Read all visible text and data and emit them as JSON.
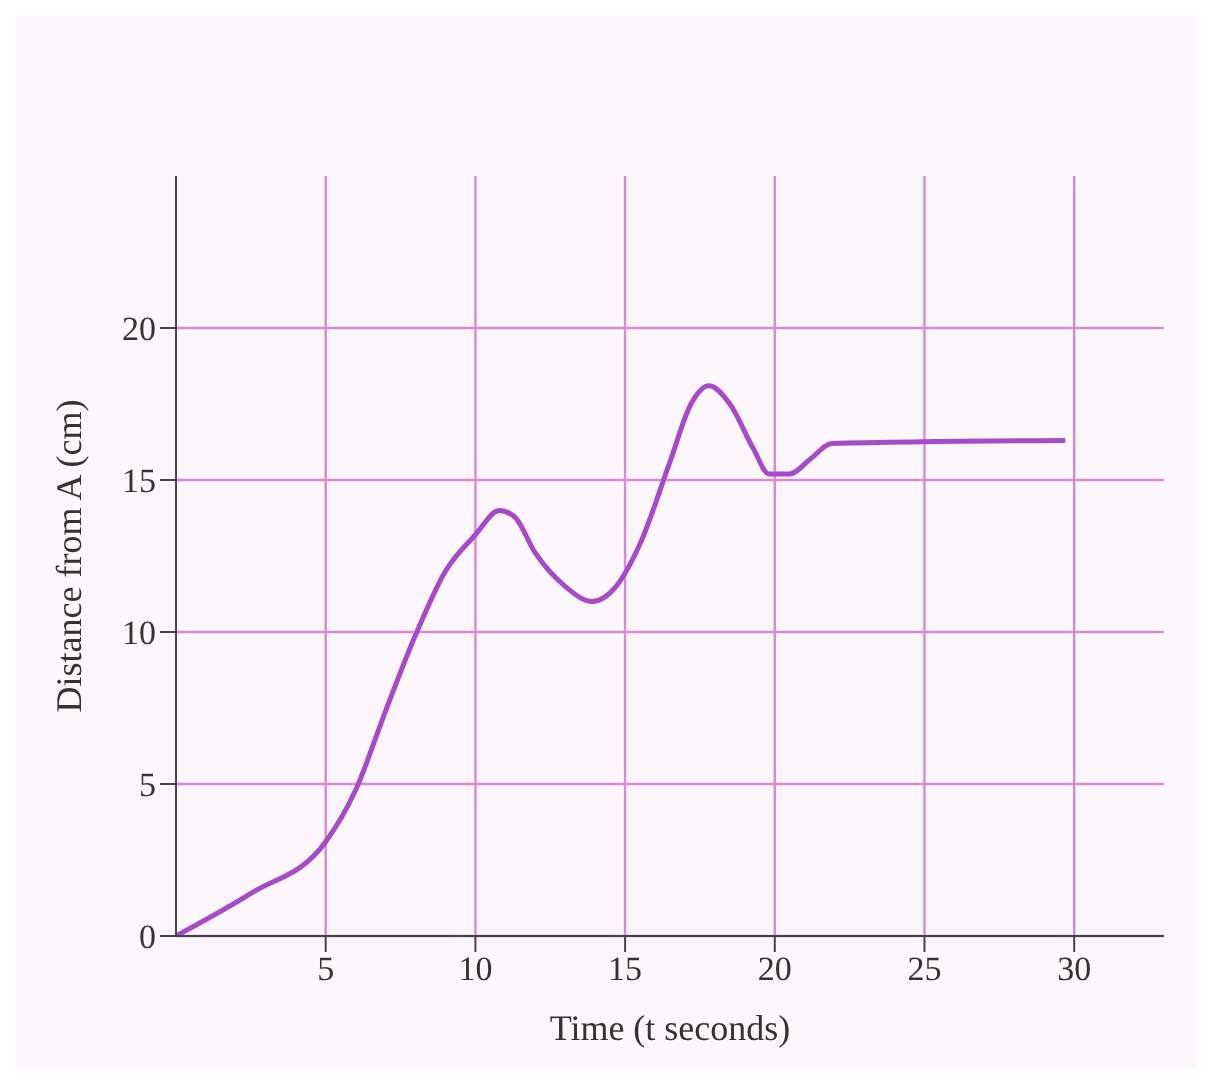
{
  "chart_data": {
    "type": "line",
    "xlabel": "Time (t seconds)",
    "ylabel": "Distance from A (cm)",
    "xlim": [
      0,
      33
    ],
    "ylim": [
      0,
      25
    ],
    "xticks": [
      5,
      10,
      15,
      20,
      25,
      30
    ],
    "yticks": [
      0,
      5,
      10,
      15,
      20
    ],
    "grid": true,
    "marker": "none",
    "line_style": "solid",
    "series": [
      {
        "color": "#a64ac9",
        "x": [
          0,
          2.5,
          5,
          6,
          7,
          8,
          9,
          10,
          10.8,
          11.3,
          12,
          13,
          13.9,
          14.7,
          15.5,
          16.5,
          17.2,
          17.8,
          18.5,
          19.3,
          19.8,
          20.5,
          21.2,
          21.9,
          29.7
        ],
        "values": [
          0,
          1.4,
          3.1,
          4.8,
          7.4,
          9.9,
          12.0,
          13.2,
          14.0,
          13.8,
          12.6,
          11.5,
          11.0,
          11.5,
          12.9,
          15.6,
          17.5,
          18.1,
          17.5,
          16.0,
          15.2,
          15.2,
          15.7,
          16.2,
          16.3
        ]
      }
    ]
  }
}
